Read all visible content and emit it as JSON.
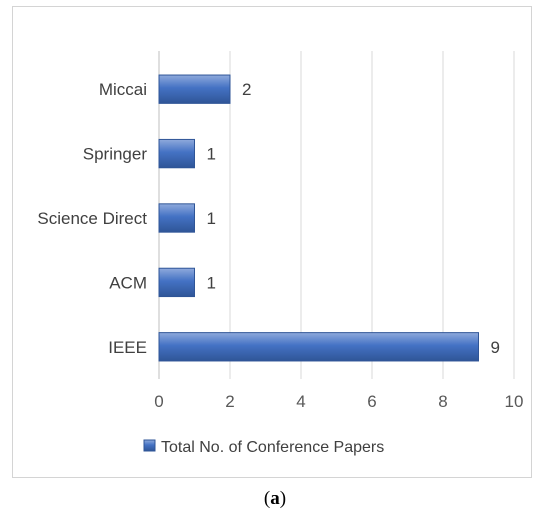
{
  "chart_data": {
    "type": "bar",
    "orientation": "horizontal",
    "categories": [
      "Miccai",
      "Springer",
      "Science Direct",
      "ACM",
      "IEEE"
    ],
    "series": [
      {
        "name": "Total No. of Conference Papers",
        "values": [
          2,
          1,
          1,
          1,
          9
        ]
      }
    ],
    "xlim": [
      0,
      10
    ],
    "xticks": [
      0,
      2,
      4,
      6,
      8,
      10
    ],
    "grid": true,
    "legend_position": "bottom",
    "bar_color": "#4472C4",
    "bar_color_dark": "#2F5597"
  },
  "caption": {
    "open": "(",
    "letter": "a",
    "close": ")"
  }
}
